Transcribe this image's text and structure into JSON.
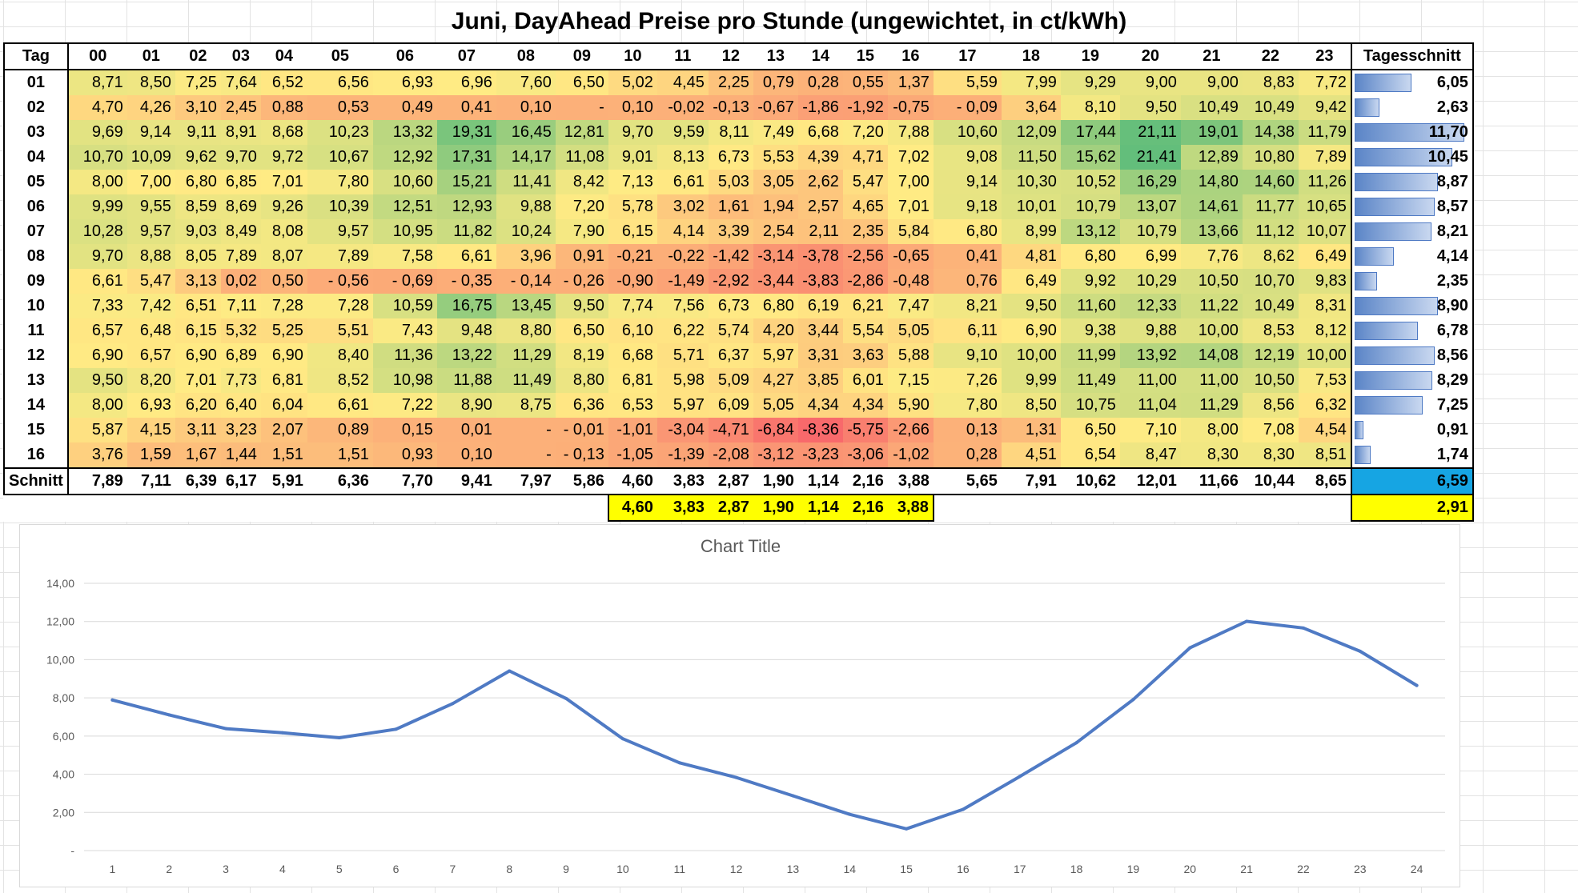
{
  "sheet": {
    "title": "Juni, DayAhead Preise pro Stunde (ungewichtet, in ct/kWh)",
    "tag_header": "Tag",
    "avg_header": "Tagesschnitt",
    "hours": [
      "00",
      "01",
      "02",
      "03",
      "04",
      "05",
      "06",
      "07",
      "08",
      "09",
      "10",
      "11",
      "12",
      "13",
      "14",
      "15",
      "16",
      "17",
      "18",
      "19",
      "20",
      "21",
      "22",
      "23"
    ],
    "rows": [
      {
        "day": "01",
        "values": [
          "8,71",
          "8,50",
          "7,25",
          "7,64",
          "6,52",
          "6,56",
          "6,93",
          "6,96",
          "7,60",
          "6,50",
          "5,02",
          "4,45",
          "2,25",
          "0,79",
          "0,28",
          "0,55",
          "1,37",
          "5,59",
          "7,99",
          "9,29",
          "9,00",
          "9,00",
          "8,83",
          "7,72"
        ],
        "avg": "6,05",
        "avg_value": 6.05
      },
      {
        "day": "02",
        "values": [
          "4,70",
          "4,26",
          "3,10",
          "2,45",
          "0,88",
          "0,53",
          "0,49",
          "0,41",
          "0,10",
          "-",
          "0,10",
          "-0,02",
          "-0,13",
          "-0,67",
          "-1,86",
          "-1,92",
          "-0,75",
          "- 0,09",
          "3,64",
          "8,10",
          "9,50",
          "10,49",
          "10,49",
          "9,42"
        ],
        "avg": "2,63",
        "avg_value": 2.63
      },
      {
        "day": "03",
        "values": [
          "9,69",
          "9,14",
          "9,11",
          "8,91",
          "8,68",
          "10,23",
          "13,32",
          "19,31",
          "16,45",
          "12,81",
          "9,70",
          "9,59",
          "8,11",
          "7,49",
          "6,68",
          "7,20",
          "7,88",
          "10,60",
          "12,09",
          "17,44",
          "21,11",
          "19,01",
          "14,38",
          "11,79"
        ],
        "avg": "11,70",
        "avg_value": 11.7
      },
      {
        "day": "04",
        "values": [
          "10,70",
          "10,09",
          "9,62",
          "9,70",
          "9,72",
          "10,67",
          "12,92",
          "17,31",
          "14,17",
          "11,08",
          "9,01",
          "8,13",
          "6,73",
          "5,53",
          "4,39",
          "4,71",
          "7,02",
          "9,08",
          "11,50",
          "15,62",
          "21,41",
          "12,89",
          "10,80",
          "7,89"
        ],
        "avg": "10,45",
        "avg_value": 10.45
      },
      {
        "day": "05",
        "values": [
          "8,00",
          "7,00",
          "6,80",
          "6,85",
          "7,01",
          "7,80",
          "10,60",
          "15,21",
          "11,41",
          "8,42",
          "7,13",
          "6,61",
          "5,03",
          "3,05",
          "2,62",
          "5,47",
          "7,00",
          "9,14",
          "10,30",
          "10,52",
          "16,29",
          "14,80",
          "14,60",
          "11,26"
        ],
        "avg": "8,87",
        "avg_value": 8.87
      },
      {
        "day": "06",
        "values": [
          "9,99",
          "9,55",
          "8,59",
          "8,69",
          "9,26",
          "10,39",
          "12,51",
          "12,93",
          "9,88",
          "7,20",
          "5,78",
          "3,02",
          "1,61",
          "1,94",
          "2,57",
          "4,65",
          "7,01",
          "9,18",
          "10,01",
          "10,79",
          "13,07",
          "14,61",
          "11,77",
          "10,65"
        ],
        "avg": "8,57",
        "avg_value": 8.57
      },
      {
        "day": "07",
        "values": [
          "10,28",
          "9,57",
          "9,03",
          "8,49",
          "8,08",
          "9,57",
          "10,95",
          "11,82",
          "10,24",
          "7,90",
          "6,15",
          "4,14",
          "3,39",
          "2,54",
          "2,11",
          "2,35",
          "5,84",
          "6,80",
          "8,99",
          "13,12",
          "10,79",
          "13,66",
          "11,12",
          "10,07"
        ],
        "avg": "8,21",
        "avg_value": 8.21
      },
      {
        "day": "08",
        "values": [
          "9,70",
          "8,88",
          "8,05",
          "7,89",
          "8,07",
          "7,89",
          "7,58",
          "6,61",
          "3,96",
          "0,91",
          "-0,21",
          "-0,22",
          "-1,42",
          "-3,14",
          "-3,78",
          "-2,56",
          "-0,65",
          "0,41",
          "4,81",
          "6,80",
          "6,99",
          "7,76",
          "8,62",
          "6,49"
        ],
        "avg": "4,14",
        "avg_value": 4.14
      },
      {
        "day": "09",
        "values": [
          "6,61",
          "5,47",
          "3,13",
          "0,02",
          "0,50",
          "- 0,56",
          "- 0,69",
          "- 0,35",
          "- 0,14",
          "- 0,26",
          "-0,90",
          "-1,49",
          "-2,92",
          "-3,44",
          "-3,83",
          "-2,86",
          "-0,48",
          "0,76",
          "6,49",
          "9,92",
          "10,29",
          "10,50",
          "10,70",
          "9,83"
        ],
        "avg": "2,35",
        "avg_value": 2.35
      },
      {
        "day": "10",
        "values": [
          "7,33",
          "7,42",
          "6,51",
          "7,11",
          "7,28",
          "7,28",
          "10,59",
          "16,75",
          "13,45",
          "9,50",
          "7,74",
          "7,56",
          "6,73",
          "6,80",
          "6,19",
          "6,21",
          "7,47",
          "8,21",
          "9,50",
          "11,60",
          "12,33",
          "11,22",
          "10,49",
          "8,31"
        ],
        "avg": "8,90",
        "avg_value": 8.9
      },
      {
        "day": "11",
        "values": [
          "6,57",
          "6,48",
          "6,15",
          "5,32",
          "5,25",
          "5,51",
          "7,43",
          "9,48",
          "8,80",
          "6,50",
          "6,10",
          "6,22",
          "5,74",
          "4,20",
          "3,44",
          "5,54",
          "5,05",
          "6,11",
          "6,90",
          "9,38",
          "9,88",
          "10,00",
          "8,53",
          "8,12"
        ],
        "avg": "6,78",
        "avg_value": 6.78
      },
      {
        "day": "12",
        "values": [
          "6,90",
          "6,57",
          "6,90",
          "6,89",
          "6,90",
          "8,40",
          "11,36",
          "13,22",
          "11,29",
          "8,19",
          "6,68",
          "5,71",
          "6,37",
          "5,97",
          "3,31",
          "3,63",
          "5,88",
          "9,10",
          "10,00",
          "11,99",
          "13,92",
          "14,08",
          "12,19",
          "10,00"
        ],
        "avg": "8,56",
        "avg_value": 8.56
      },
      {
        "day": "13",
        "values": [
          "9,50",
          "8,20",
          "7,01",
          "7,73",
          "6,81",
          "8,52",
          "10,98",
          "11,88",
          "11,49",
          "8,80",
          "6,81",
          "5,98",
          "5,09",
          "4,27",
          "3,85",
          "6,01",
          "7,15",
          "7,26",
          "9,99",
          "11,49",
          "11,00",
          "11,00",
          "10,50",
          "7,53"
        ],
        "avg": "8,29",
        "avg_value": 8.29
      },
      {
        "day": "14",
        "values": [
          "8,00",
          "6,93",
          "6,20",
          "6,40",
          "6,04",
          "6,61",
          "7,22",
          "8,90",
          "8,75",
          "6,36",
          "6,53",
          "5,97",
          "6,09",
          "5,05",
          "4,34",
          "4,34",
          "5,90",
          "7,80",
          "8,50",
          "10,75",
          "11,04",
          "11,29",
          "8,56",
          "6,32"
        ],
        "avg": "7,25",
        "avg_value": 7.25
      },
      {
        "day": "15",
        "values": [
          "5,87",
          "4,15",
          "3,11",
          "3,23",
          "2,07",
          "0,89",
          "0,15",
          "0,01",
          "-",
          "- 0,01",
          "-1,01",
          "-3,04",
          "-4,71",
          "-6,84",
          "-8,36",
          "-5,75",
          "-2,66",
          "0,13",
          "1,31",
          "6,50",
          "7,10",
          "8,00",
          "7,08",
          "4,54"
        ],
        "avg": "0,91",
        "avg_value": 0.91
      },
      {
        "day": "16",
        "values": [
          "3,76",
          "1,59",
          "1,67",
          "1,44",
          "1,51",
          "1,51",
          "0,93",
          "0,10",
          "-",
          "- 0,13",
          "-1,05",
          "-1,39",
          "-2,08",
          "-3,12",
          "-3,23",
          "-3,06",
          "-1,02",
          "0,28",
          "4,51",
          "6,54",
          "8,47",
          "8,30",
          "8,30",
          "8,51"
        ],
        "avg": "1,74",
        "avg_value": 1.74
      }
    ],
    "sum_row": {
      "label": "Schnitt",
      "values": [
        "7,89",
        "7,11",
        "6,39",
        "6,17",
        "5,91",
        "6,36",
        "7,70",
        "9,41",
        "7,97",
        "5,86",
        "4,60",
        "3,83",
        "2,87",
        "1,90",
        "1,14",
        "2,16",
        "3,88",
        "5,65",
        "7,91",
        "10,62",
        "12,01",
        "11,66",
        "10,44",
        "8,65"
      ],
      "avg": "6,59"
    },
    "extra_row": {
      "values": [
        "4,60",
        "3,83",
        "2,87",
        "1,90",
        "1,14",
        "2,16",
        "3,88"
      ],
      "avg": "2,91"
    },
    "colors": {
      "low": "#f8696b",
      "mid": "#ffeb84",
      "high": "#63be7b",
      "avg_highlight": "#16a5e3",
      "yellow": "#ffff00",
      "bar": "#5b85c7"
    }
  },
  "chart_data": {
    "type": "line",
    "title": "Chart Title",
    "categories": [
      "1",
      "2",
      "3",
      "4",
      "5",
      "6",
      "7",
      "8",
      "9",
      "10",
      "11",
      "12",
      "13",
      "14",
      "15",
      "16",
      "17",
      "18",
      "19",
      "20",
      "21",
      "22",
      "23",
      "24"
    ],
    "series": [
      {
        "values": [
          7.89,
          7.11,
          6.39,
          6.17,
          5.91,
          6.36,
          7.7,
          9.41,
          7.97,
          5.86,
          4.6,
          3.83,
          2.87,
          1.9,
          1.14,
          2.16,
          3.88,
          5.65,
          7.91,
          10.62,
          12.01,
          11.66,
          10.44,
          8.65
        ],
        "color": "#4f7ac4"
      }
    ],
    "ylim": [
      0,
      14
    ],
    "yticks": [
      "-",
      "2,00",
      "4,00",
      "6,00",
      "8,00",
      "10,00",
      "12,00",
      "14,00"
    ],
    "grid": true,
    "xlabel": "",
    "ylabel": ""
  }
}
